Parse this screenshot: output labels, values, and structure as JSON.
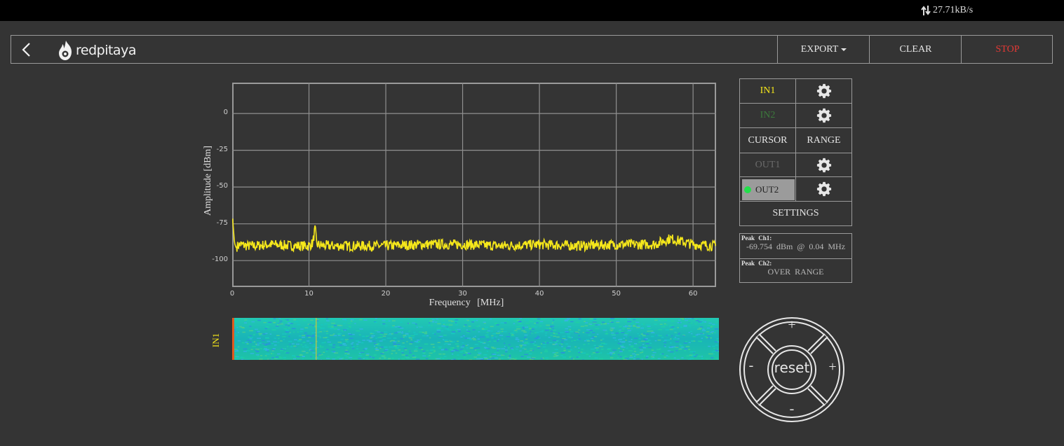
{
  "statusbar": {
    "rate": "27.71kB/s"
  },
  "header": {
    "logo_text": "redpitaya",
    "export_label": "EXPORT",
    "clear_label": "CLEAR",
    "stop_label": "STOP"
  },
  "panel": {
    "in1": "IN1",
    "in2": "IN2",
    "cursor": "CURSOR",
    "range": "RANGE",
    "out1": "OUT1",
    "out2": "OUT2",
    "settings": "SETTINGS"
  },
  "peaks": {
    "ch1_title": "Peak Ch1:",
    "ch1_value": "-69.754 dBm @ 0.04 MHz",
    "ch2_title": "Peak Ch2:",
    "ch2_value": "OVER RANGE"
  },
  "waterfall": {
    "label": "IN1"
  },
  "dpad": {
    "reset": "reset",
    "plus_top": "+",
    "plus_right": "+",
    "minus_left": "-",
    "minus_bottom": "-"
  },
  "colors": {
    "trace": "#f5e71b",
    "stop": "#e53935",
    "grid": "#8f8f8f",
    "in2": "#3c7a3c",
    "led": "#22e04b"
  },
  "chart_data": {
    "type": "line",
    "xlabel": "Frequency [MHz]",
    "ylabel": "Amplitude [dBm]",
    "xlim": [
      0,
      63
    ],
    "ylim": [
      -118,
      21
    ],
    "xticks": [
      0,
      10,
      20,
      30,
      40,
      50,
      60
    ],
    "yticks": [
      0,
      -25,
      -50,
      -75,
      -100
    ],
    "grid": true,
    "series": [
      {
        "color": "#f5e71b",
        "x": [
          0,
          0.04,
          0.3,
          0.5,
          1,
          2,
          3,
          5,
          8,
          10,
          10.5,
          10.8,
          11,
          12,
          15,
          20,
          25,
          30,
          35,
          40,
          45,
          50,
          55,
          57,
          60,
          63
        ],
        "y": [
          -72,
          -69.754,
          -88,
          -91,
          -89,
          -90,
          -90,
          -89,
          -90,
          -90,
          -88,
          -78,
          -89,
          -90,
          -90,
          -90,
          -89,
          -89,
          -90,
          -89,
          -90,
          -89,
          -89,
          -85,
          -89,
          -90
        ]
      }
    ]
  }
}
